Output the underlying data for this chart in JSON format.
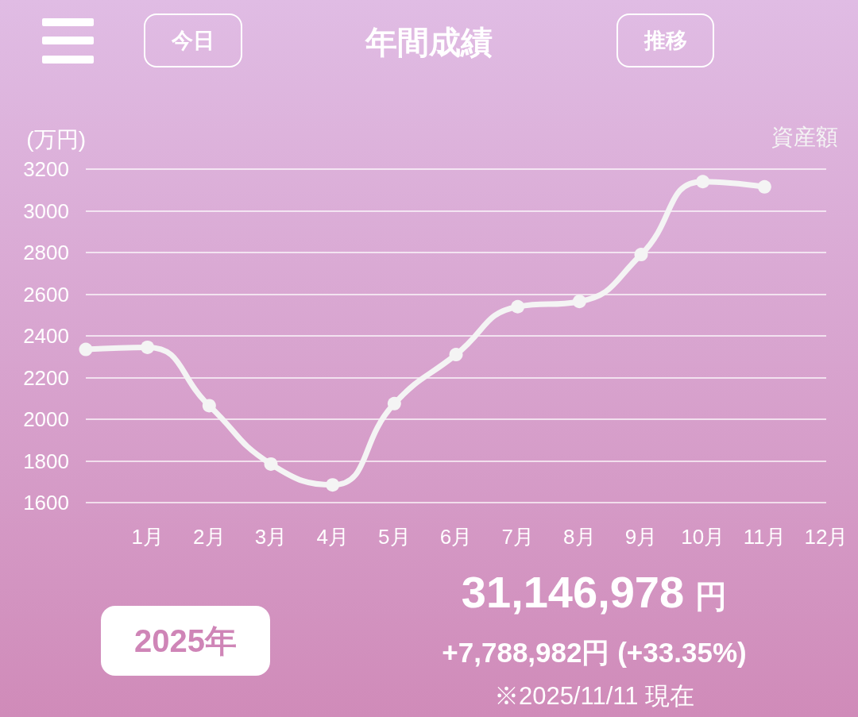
{
  "chart_data": {
    "type": "line",
    "title": "年間成績",
    "ylabel": "(万円)",
    "categories": [
      null,
      "1月",
      "2月",
      "3月",
      "4月",
      "5月",
      "6月",
      "7月",
      "8月",
      "9月",
      "10月",
      "11月",
      "12月"
    ],
    "series": [
      {
        "name": "資産額",
        "color": "#f4f4f4",
        "values": [
          2335,
          2345,
          2065,
          1785,
          1685,
          2075,
          2310,
          2540,
          2565,
          2790,
          3140,
          3115,
          null
        ]
      }
    ],
    "ylim": [
      1600,
      3200
    ],
    "yticks": [
      1600,
      1800,
      2000,
      2200,
      2400,
      2600,
      2800,
      3000,
      3200
    ],
    "grid": "y",
    "legend": "top right",
    "marker": "circle",
    "line_style": "solid",
    "annotations": [
      "今日",
      "推移",
      "2025年",
      "31,146,978",
      "円",
      "+7,788,982円 (+33.35%)",
      "※2025/11/11 現在"
    ]
  }
}
